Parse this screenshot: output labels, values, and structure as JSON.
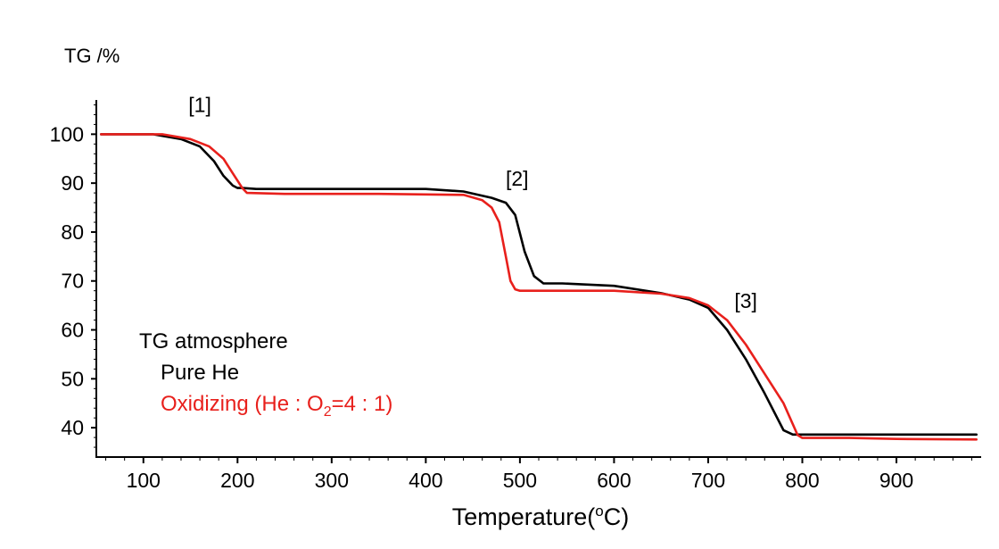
{
  "chart_data": {
    "type": "line",
    "title": "",
    "ylabel": "TG /%",
    "xlabel_prefix": "Temperature(",
    "xlabel_sup": "o",
    "xlabel_suffix": "C)",
    "xlim": [
      50,
      990
    ],
    "ylim": [
      34,
      107
    ],
    "x_ticks": [
      100,
      200,
      300,
      400,
      500,
      600,
      700,
      800,
      900
    ],
    "y_ticks": [
      40,
      50,
      60,
      70,
      80,
      90,
      100
    ],
    "annotations": [
      {
        "label": "[1]",
        "x": 160,
        "y": 104.5
      },
      {
        "label": "[2]",
        "x": 497,
        "y": 89.5
      },
      {
        "label": "[3]",
        "x": 740,
        "y": 64.5
      }
    ],
    "legend": {
      "title": "TG atmosphere",
      "entry_he": "Pure He",
      "entry_ox_prefix": "Oxidizing (He : O",
      "entry_ox_sub": "2",
      "entry_ox_suffix": "=4 : 1)"
    },
    "series": [
      {
        "name": "Pure He",
        "color": "#000000",
        "x": [
          55,
          110,
          140,
          160,
          175,
          185,
          195,
          200,
          205,
          220,
          300,
          400,
          440,
          470,
          485,
          495,
          505,
          515,
          525,
          545,
          600,
          650,
          680,
          700,
          720,
          740,
          760,
          780,
          790,
          800,
          900,
          985
        ],
        "y": [
          100,
          100,
          99,
          97.5,
          94.5,
          91.5,
          89.5,
          89,
          89,
          88.8,
          88.8,
          88.8,
          88.3,
          87,
          86,
          83.5,
          76,
          71,
          69.5,
          69.5,
          69,
          67.5,
          66.2,
          64.5,
          60,
          54,
          47,
          39.5,
          38.6,
          38.6,
          38.6,
          38.6
        ]
      },
      {
        "name": "Oxidizing",
        "color": "#e8201c",
        "x": [
          55,
          120,
          150,
          170,
          185,
          195,
          205,
          210,
          250,
          350,
          440,
          460,
          470,
          478,
          485,
          490,
          495,
          500,
          520,
          600,
          650,
          680,
          700,
          720,
          740,
          760,
          780,
          795,
          800,
          850,
          900,
          985
        ],
        "y": [
          100,
          100,
          99,
          97.5,
          95,
          92,
          89,
          88,
          87.8,
          87.8,
          87.6,
          86.5,
          85,
          82,
          75,
          70,
          68.3,
          68,
          68,
          68,
          67.4,
          66.5,
          65,
          62,
          57,
          51,
          45,
          38.5,
          37.9,
          37.9,
          37.7,
          37.6
        ]
      }
    ]
  }
}
